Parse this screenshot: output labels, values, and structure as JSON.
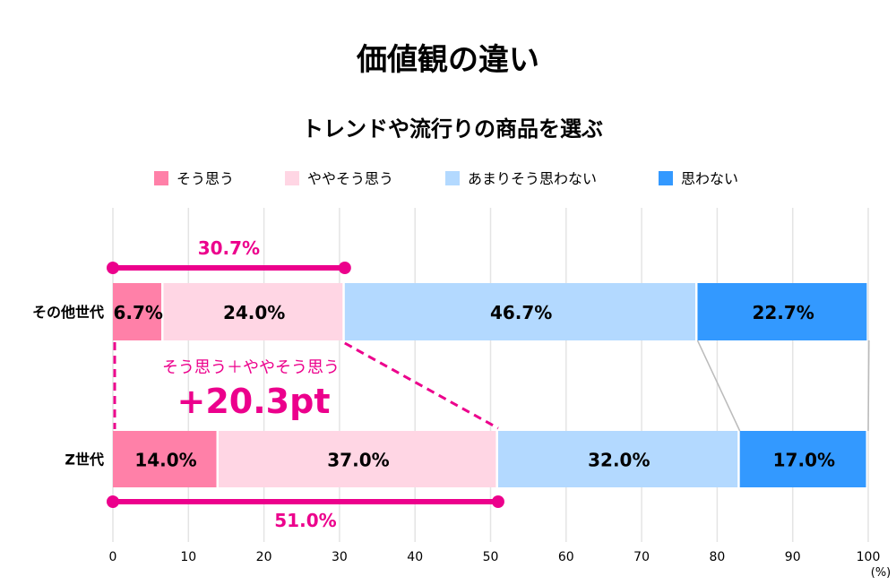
{
  "chart_data": {
    "type": "bar",
    "orientation": "horizontal",
    "stacked": true,
    "title": "価値観の違い",
    "subtitle": "トレンドや流行りの商品を選ぶ",
    "categories": [
      "その他世代",
      "Z世代"
    ],
    "series": [
      {
        "name": "そう思う",
        "values": [
          6.7,
          14.0
        ],
        "labels": [
          "6.7%",
          "14.0%"
        ],
        "color": "#FF80A8"
      },
      {
        "name": "ややそう思う",
        "values": [
          24.0,
          37.0
        ],
        "labels": [
          "24.0%",
          "37.0%"
        ],
        "color": "#FFD6E4"
      },
      {
        "name": "あまりそう思わない",
        "values": [
          46.7,
          32.0
        ],
        "labels": [
          "46.7%",
          "32.0%"
        ],
        "color": "#B3D9FF"
      },
      {
        "name": "思わない",
        "values": [
          22.7,
          17.0
        ],
        "labels": [
          "22.7%",
          "17.0%"
        ],
        "color": "#3399FF"
      }
    ],
    "xlim": [
      0,
      100
    ],
    "xticks": [
      "0",
      "10",
      "20",
      "30",
      "40",
      "50",
      "60",
      "70",
      "80",
      "90",
      "100"
    ],
    "xunit": "(%)",
    "grid": true,
    "legend": "top",
    "annotations": {
      "top_sum": {
        "value": 30.7,
        "label": "30.7%"
      },
      "bottom_sum": {
        "value": 51.0,
        "label": "51.0%"
      },
      "diff_caption": "そう思う＋ややそう思う",
      "diff_value": "+20.3pt",
      "color": "#EC008C"
    }
  }
}
